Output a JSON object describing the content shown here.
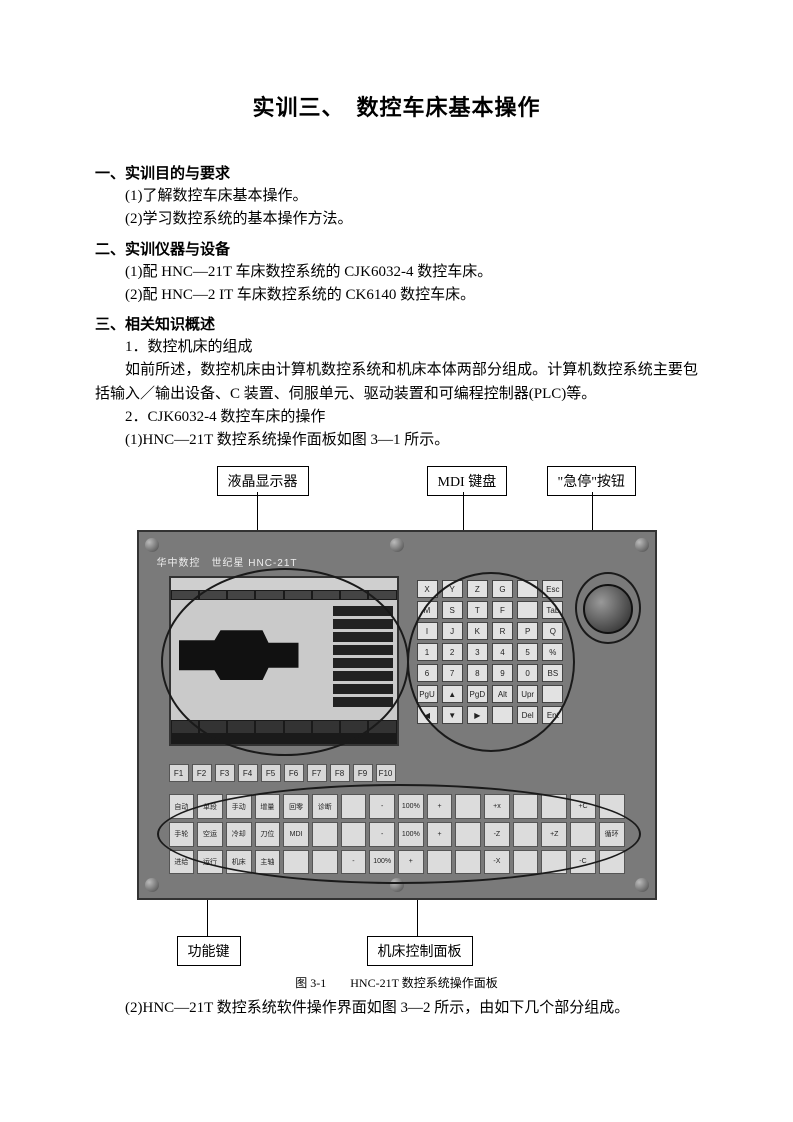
{
  "title": "实训三、　数控车床基本操作",
  "s1": {
    "head": "一、实训目的与要求",
    "i1": "(1)了解数控车床基本操作。",
    "i2": "(2)学习数控系统的基本操作方法。"
  },
  "s2": {
    "head": "二、实训仪器与设备",
    "i1": "(1)配 HNC—21T 车床数控系统的 CJK6032-4 数控车床。",
    "i2": "(2)配 HNC—2 IT 车床数控系统的 CK6140 数控车床。"
  },
  "s3": {
    "head": "三、相关知识概述",
    "p1": "1．数控机床的组成",
    "p2": "如前所述，数控机床由计算机数控系统和机床本体两部分组成。计算机数控系统主要包括输入／输出设备、C 装置、伺服单元、驱动装置和可编程控制器(PLC)等。",
    "p3": "2．CJK6032-4 数控车床的操作",
    "p4": "(1)HNC—21T 数控系统操作面板如图 3—1 所示。"
  },
  "callouts": {
    "lcd": "液晶显示器",
    "mdi": "MDI 键盘",
    "estop": "\"急停\"按钮",
    "fkey": "功能键",
    "mcp": "机床控制面板"
  },
  "panel": {
    "brand": "华中数控　世纪星 HNC-21T",
    "fkeys": [
      "F1",
      "F2",
      "F3",
      "F4",
      "F5",
      "F6",
      "F7",
      "F8",
      "F9",
      "F10"
    ],
    "mdi_keys": [
      "X",
      "Y",
      "Z",
      "G",
      "",
      "Esc",
      "M",
      "S",
      "T",
      "F",
      "",
      "Tab",
      "I",
      "J",
      "K",
      "R",
      "P",
      "Q",
      "1",
      "2",
      "3",
      "4",
      "5",
      "%",
      "6",
      "7",
      "8",
      "9",
      "0",
      "BS",
      "PgU",
      "▲",
      "PgD",
      "Alt",
      "Upr",
      "",
      "◀",
      "▼",
      "▶",
      "",
      "Del",
      "Ent"
    ],
    "mcp_keys": [
      "自动",
      "单段",
      "手动",
      "增量",
      "回零",
      "诊断",
      "",
      "-",
      "100%",
      "+",
      "",
      "+x",
      "",
      "",
      "+C",
      "",
      "手轮",
      "空运",
      "冷却",
      "刀位",
      "MDI",
      "",
      "",
      "-",
      "100%",
      "+",
      "",
      "-Z",
      "",
      "+Z",
      "",
      "循环",
      "进给",
      "运行",
      "机床",
      "主轴",
      "",
      "",
      "-",
      "100%",
      "+",
      "",
      "",
      "-X",
      "",
      "",
      "-C",
      ""
    ]
  },
  "caption": "图 3-1　　HNC-21T 数控系统操作面板",
  "after": "(2)HNC—21T 数控系统软件操作界面如图 3—2 所示，由如下几个部分组成。",
  "colors": {
    "panel_bg": "#7a7a7a",
    "key_bg": "#e2e2e2",
    "screen_bg": "#1a1a1a"
  }
}
